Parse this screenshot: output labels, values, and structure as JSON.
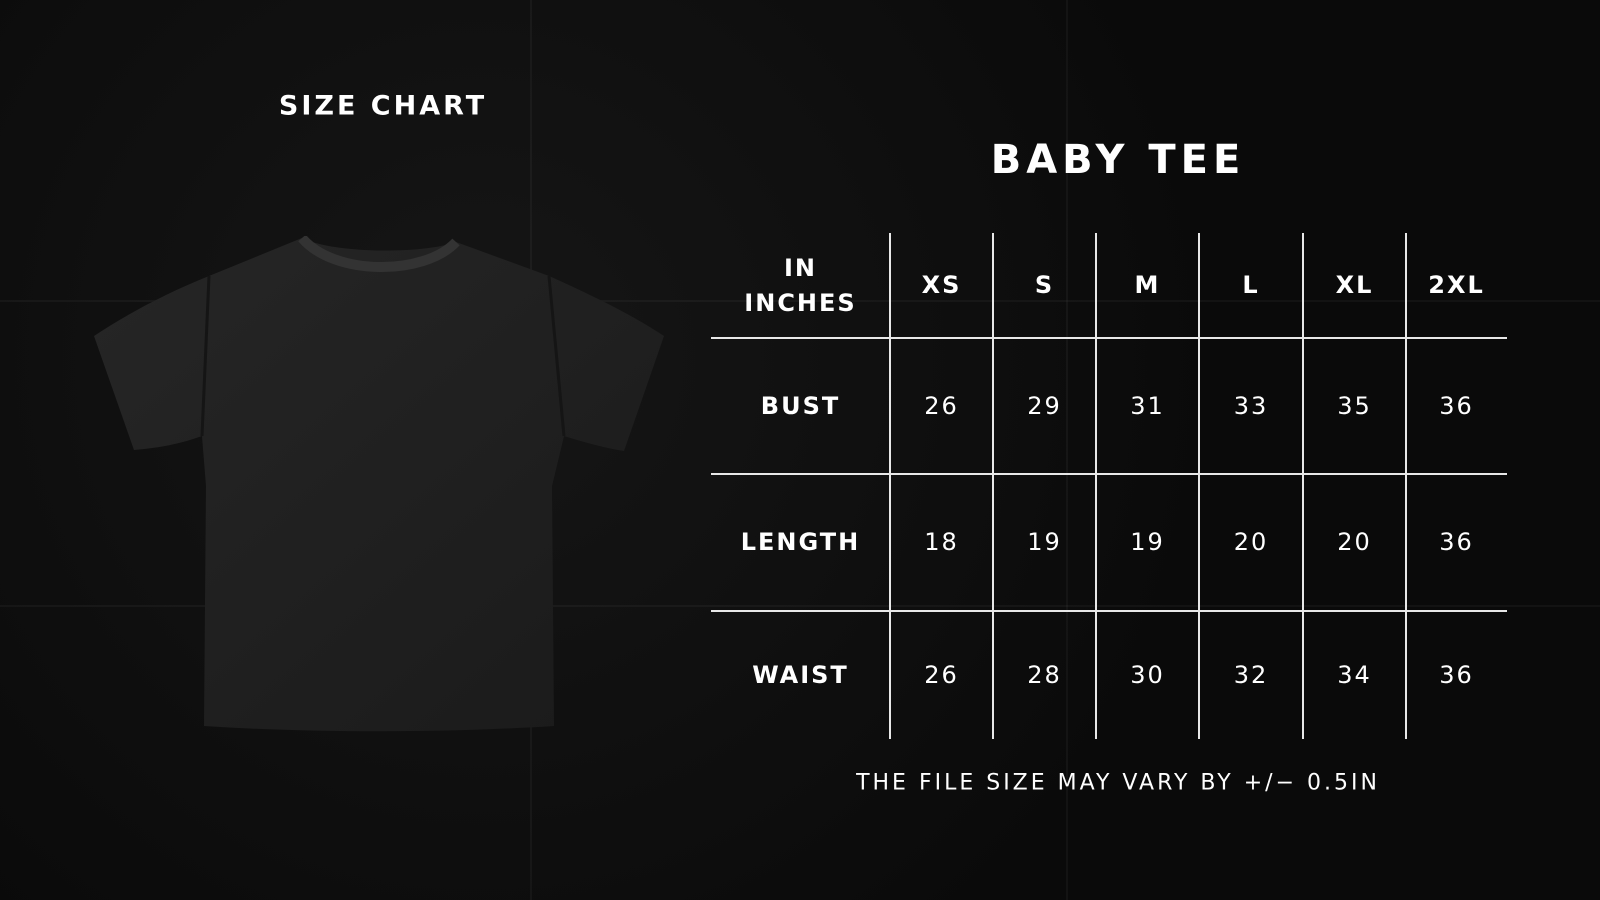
{
  "header": {
    "left_title": "SIZE CHART",
    "product_title": "BABY TEE"
  },
  "product_image": {
    "icon": "black-tshirt-icon",
    "color": "#1f1f1f"
  },
  "table": {
    "corner_label": "IN INCHES",
    "sizes": [
      "XS",
      "S",
      "M",
      "L",
      "XL",
      "2XL"
    ],
    "rows": [
      {
        "label": "BUST",
        "values": [
          "26",
          "29",
          "31",
          "33",
          "35",
          "36"
        ]
      },
      {
        "label": "LENGTH",
        "values": [
          "18",
          "19",
          "19",
          "20",
          "20",
          "36"
        ]
      },
      {
        "label": "WAIST",
        "values": [
          "26",
          "28",
          "30",
          "32",
          "34",
          "36"
        ]
      }
    ]
  },
  "footer": {
    "note": "THE FILE SIZE MAY VARY BY +/− 0.5IN"
  }
}
